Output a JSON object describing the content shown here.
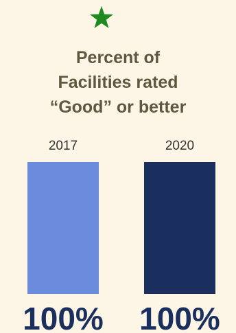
{
  "title": "Percent of\nFacilities rated\n“Good” or better",
  "star_icon": "star-icon",
  "colors": {
    "background": "#fdf5e5",
    "star": "#1f8a1f",
    "title": "#5f5840",
    "bar_2017": "#6b8cdc",
    "bar_2020": "#1b2f5e",
    "value_label": "#1b2f5e",
    "year_label": "#333333"
  },
  "chart_data": {
    "type": "bar",
    "title": "Percent of Facilities rated “Good” or better",
    "categories": [
      "2017",
      "2020"
    ],
    "values": [
      100,
      100
    ],
    "value_labels": [
      "100%",
      "100%"
    ],
    "ylim": [
      0,
      100
    ],
    "xlabel": "",
    "ylabel": "",
    "grid": false
  }
}
